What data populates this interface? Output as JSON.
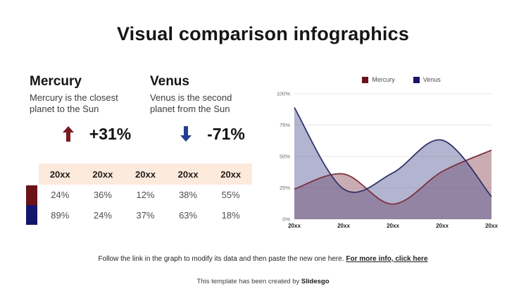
{
  "slide": {
    "title": "Visual comparison infographics",
    "footer_note": "Follow the link in the graph to modify its data and then paste the new one here.",
    "footer_link": "For more info, click here",
    "credit_prefix": "This template has been created by ",
    "credit_brand": "Slidesgo"
  },
  "planets": [
    {
      "name": "Mercury",
      "description": "Mercury is the closest planet to the Sun",
      "change": "+31%",
      "direction": "up",
      "color": "#7a1a1f"
    },
    {
      "name": "Venus",
      "description": "Venus is the second planet from the Sun",
      "change": "-71%",
      "direction": "down",
      "color": "#243e8f"
    }
  ],
  "table": {
    "columns": [
      "20xx",
      "20xx",
      "20xx",
      "20xx",
      "20xx"
    ],
    "header_bg": "#fceadd",
    "rows": [
      {
        "series": "Mercury",
        "swatch": "#6b1218",
        "values": [
          "24%",
          "36%",
          "12%",
          "38%",
          "55%"
        ]
      },
      {
        "series": "Venus",
        "swatch": "#15156b",
        "values": [
          "89%",
          "24%",
          "37%",
          "63%",
          "18%"
        ]
      }
    ]
  },
  "chart_data": {
    "type": "area",
    "smooth": true,
    "grid": true,
    "legend_position": "top",
    "categories": [
      "20xx",
      "20xx",
      "20xx",
      "20xx",
      "20xx"
    ],
    "series": [
      {
        "name": "Mercury",
        "values": [
          24,
          36,
          12,
          38,
          55
        ],
        "line_color": "#7b3240",
        "fill_color": "rgba(123,50,64,0.40)",
        "legend_color": "#6b1218"
      },
      {
        "name": "Venus",
        "values": [
          89,
          24,
          37,
          63,
          18
        ],
        "line_color": "#32326b",
        "fill_color": "rgba(74,76,140,0.42)",
        "legend_color": "#15156b"
      }
    ],
    "ylim": [
      0,
      100
    ],
    "yticks": [
      0,
      25,
      50,
      75,
      100
    ],
    "ytick_labels": [
      "0%",
      "25%",
      "50%",
      "75%",
      "100%"
    ],
    "xlabel": "",
    "ylabel": ""
  }
}
